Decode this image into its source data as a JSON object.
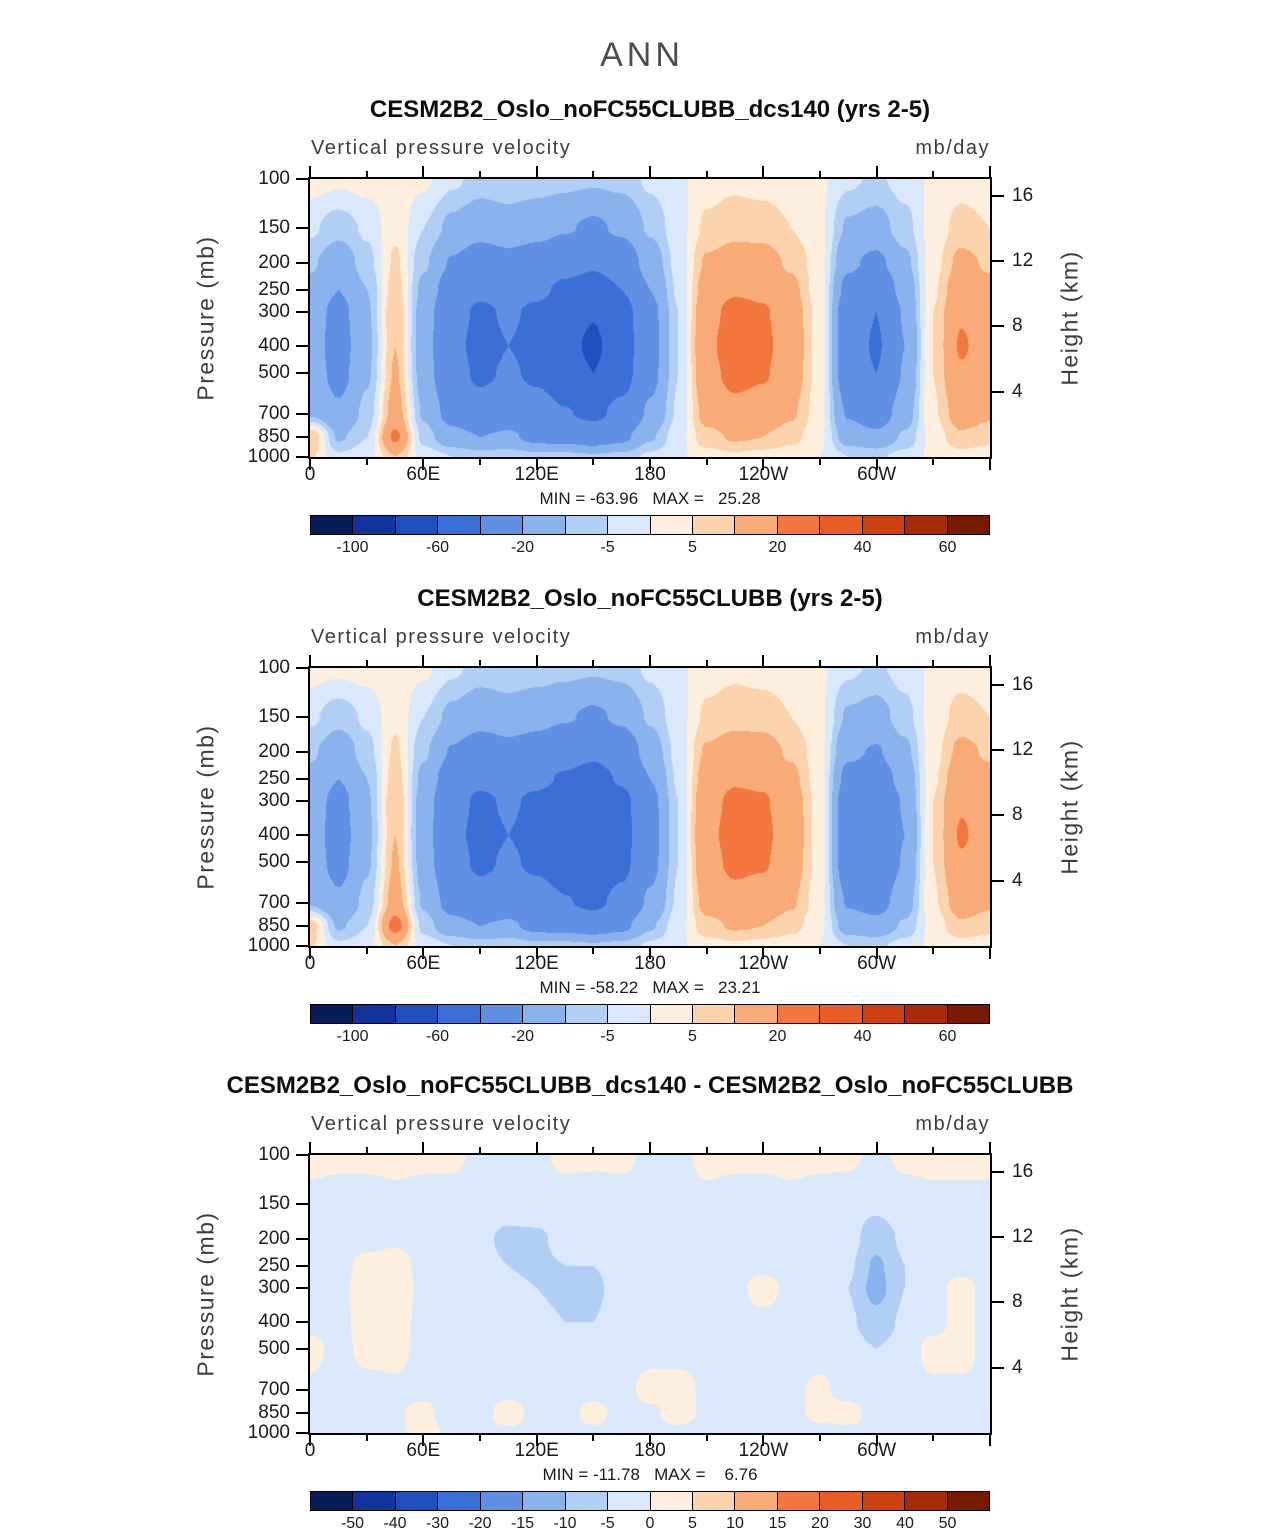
{
  "page": {
    "title": "ANN"
  },
  "panels": [
    {
      "title": "CESM2B2_Oslo_noFC55CLUBB_dcs140 (yrs 2-5)",
      "subtitle_left": "Vertical pressure velocity",
      "subtitle_right": "mb/day",
      "ylabel_left": "Pressure (mb)",
      "ylabel_right": "Height (km)",
      "minmax": "MIN = -63.96   MAX =   25.28"
    },
    {
      "title": "CESM2B2_Oslo_noFC55CLUBB (yrs 2-5)",
      "subtitle_left": "Vertical pressure velocity",
      "subtitle_right": "mb/day",
      "ylabel_left": "Pressure (mb)",
      "ylabel_right": "Height (km)",
      "minmax": "MIN = -58.22   MAX =   23.21"
    },
    {
      "title": "CESM2B2_Oslo_noFC55CLUBB_dcs140 - CESM2B2_Oslo_noFC55CLUBB",
      "subtitle_left": "Vertical pressure velocity",
      "subtitle_right": "mb/day",
      "ylabel_left": "Pressure (mb)",
      "ylabel_right": "Height (km)",
      "minmax": "MIN = -11.78   MAX =    6.76"
    }
  ],
  "chart_data": [
    {
      "type": "filled_contour",
      "title": "CESM2B2_Oslo_noFC55CLUBB_dcs140 (yrs 2-5)",
      "field": "Vertical pressure velocity",
      "units": "mb/day",
      "min": -63.96,
      "max": 25.28,
      "xlabel": "",
      "ylabel": "Pressure (mb)",
      "y2label": "Height (km)",
      "lon": [
        0,
        15,
        30,
        45,
        60,
        75,
        90,
        105,
        120,
        135,
        150,
        165,
        180,
        195,
        210,
        225,
        240,
        255,
        270,
        285,
        300,
        315,
        330,
        345,
        360
      ],
      "plev": [
        100,
        150,
        200,
        250,
        300,
        400,
        500,
        700,
        850,
        1000
      ],
      "values": [
        [
          2,
          1,
          2,
          3,
          1,
          -4,
          -7,
          -6,
          -7,
          -8,
          -9,
          -8,
          -4,
          -1,
          3,
          4,
          3,
          2,
          1,
          -4,
          -6,
          -3,
          1,
          3,
          2
        ],
        [
          -4,
          -8,
          -4,
          4,
          -5,
          -12,
          -16,
          -14,
          -16,
          -19,
          -22,
          -18,
          -9,
          -2,
          6,
          8,
          8,
          5,
          1,
          -11,
          -13,
          -7,
          2,
          7,
          5
        ],
        [
          -9,
          -15,
          -7,
          6,
          -9,
          -21,
          -27,
          -24,
          -27,
          -33,
          -37,
          -30,
          -15,
          -3,
          11,
          14,
          13,
          9,
          2,
          -18,
          -23,
          -12,
          3,
          12,
          9
        ],
        [
          -12,
          -20,
          -10,
          8,
          -12,
          -28,
          -36,
          -32,
          -36,
          -44,
          -50,
          -40,
          -20,
          -4,
          14,
          19,
          18,
          12,
          2,
          -24,
          -32,
          -16,
          4,
          16,
          12
        ],
        [
          -14,
          -24,
          -11,
          10,
          -14,
          -33,
          -43,
          -38,
          -43,
          -52,
          -59,
          -48,
          -24,
          -5,
          17,
          23,
          21,
          14,
          3,
          -29,
          -40,
          -19,
          5,
          19,
          14
        ],
        [
          -15,
          -25,
          -12,
          10,
          -15,
          -35,
          -45,
          -40,
          -45,
          -55,
          -63,
          -50,
          -25,
          -5,
          18,
          25,
          22,
          15,
          3,
          -30,
          -42,
          -20,
          5,
          21,
          15
        ],
        [
          -14,
          -24,
          -11,
          11,
          -14,
          -33,
          -43,
          -38,
          -43,
          -52,
          -60,
          -48,
          -24,
          -5,
          17,
          23,
          21,
          14,
          3,
          -29,
          -40,
          -19,
          5,
          19,
          14
        ],
        [
          -11,
          -18,
          -8,
          14,
          -11,
          -25,
          -32,
          -28,
          -32,
          -39,
          -44,
          -35,
          -18,
          -4,
          13,
          17,
          15,
          11,
          2,
          -21,
          -28,
          -14,
          4,
          14,
          11
        ],
        [
          10,
          -11,
          -5,
          22,
          -7,
          -16,
          -20,
          -18,
          -24,
          -25,
          -28,
          -23,
          -11,
          -2,
          8,
          11,
          10,
          7,
          1,
          -14,
          -17,
          -9,
          2,
          9,
          7
        ],
        [
          6,
          -4,
          -2,
          10,
          -2,
          -5,
          -7,
          -6,
          -8,
          -8,
          -9,
          -8,
          -4,
          -1,
          3,
          4,
          3,
          2,
          0,
          -5,
          -6,
          -3,
          1,
          3,
          2
        ]
      ],
      "levels": [
        -100,
        -80,
        -60,
        -40,
        -20,
        -10,
        -5,
        0,
        5,
        10,
        20,
        30,
        40,
        50,
        60
      ],
      "colors": [
        "#081d58",
        "#12339b",
        "#1e4fbd",
        "#3a6fd8",
        "#5f90e4",
        "#8ab3ee",
        "#b1cef5",
        "#d9e8fa",
        "#fdeedd",
        "#fbd4ae",
        "#f9ab77",
        "#f4763f",
        "#e75c22",
        "#cf4010",
        "#a82a06",
        "#781903"
      ],
      "x_ticks": [
        {
          "value": 0,
          "label": "0"
        },
        {
          "value": 60,
          "label": "60E"
        },
        {
          "value": 120,
          "label": "120E"
        },
        {
          "value": 180,
          "label": "180"
        },
        {
          "value": 240,
          "label": "120W"
        },
        {
          "value": 300,
          "label": "60W"
        }
      ],
      "pressure_ticks": [
        100,
        150,
        200,
        250,
        300,
        400,
        500,
        700,
        850,
        1000
      ],
      "height_ticks": [
        16,
        12,
        8,
        4
      ],
      "colorbar_labels": [
        "-100",
        "-60",
        "-20",
        "-5",
        "5",
        "20",
        "40",
        "60"
      ],
      "colorbar_label_positions": [
        1,
        3,
        5,
        7,
        9,
        11,
        13,
        15
      ]
    },
    {
      "type": "filled_contour",
      "title": "CESM2B2_Oslo_noFC55CLUBB (yrs 2-5)",
      "field": "Vertical pressure velocity",
      "units": "mb/day",
      "min": -58.22,
      "max": 23.21,
      "xlabel": "",
      "ylabel": "Pressure (mb)",
      "y2label": "Height (km)",
      "lon": [
        0,
        15,
        30,
        45,
        60,
        75,
        90,
        105,
        120,
        135,
        150,
        165,
        180,
        195,
        210,
        225,
        240,
        255,
        270,
        285,
        300,
        315,
        330,
        345,
        360
      ],
      "plev": [
        100,
        150,
        200,
        250,
        300,
        400,
        500,
        700,
        850,
        1000
      ],
      "values": [
        [
          2,
          1,
          2,
          3,
          1,
          -4,
          -7,
          -6,
          -7,
          -8,
          -9,
          -8,
          -4,
          -1,
          3,
          4,
          3,
          2,
          1,
          -4,
          -6,
          -3,
          1,
          3,
          2
        ],
        [
          -4,
          -8,
          -4,
          4,
          -5,
          -12,
          -16,
          -14,
          -16,
          -19,
          -22,
          -18,
          -9,
          -2,
          6,
          8,
          8,
          5,
          1,
          -11,
          -13,
          -7,
          2,
          7,
          5
        ],
        [
          -9,
          -15,
          -7,
          6,
          -9,
          -21,
          -27,
          -24,
          -27,
          -33,
          -37,
          -30,
          -15,
          -3,
          11,
          14,
          13,
          9,
          2,
          -18,
          -21,
          -12,
          3,
          12,
          9
        ],
        [
          -12,
          -20,
          -10,
          8,
          -12,
          -28,
          -36,
          -32,
          -36,
          -42,
          -47,
          -38,
          -20,
          -4,
          14,
          19,
          18,
          12,
          2,
          -24,
          -27,
          -16,
          4,
          16,
          12
        ],
        [
          -14,
          -24,
          -11,
          10,
          -14,
          -33,
          -43,
          -38,
          -43,
          -49,
          -55,
          -45,
          -24,
          -5,
          17,
          22,
          21,
          14,
          3,
          -29,
          -33,
          -19,
          5,
          19,
          14
        ],
        [
          -15,
          -25,
          -12,
          10,
          -15,
          -35,
          -45,
          -40,
          -45,
          -52,
          -58,
          -47,
          -25,
          -5,
          18,
          23,
          22,
          15,
          3,
          -30,
          -35,
          -20,
          5,
          21,
          15
        ],
        [
          -14,
          -24,
          -11,
          11,
          -14,
          -33,
          -43,
          -38,
          -43,
          -49,
          -55,
          -45,
          -24,
          -5,
          17,
          22,
          21,
          14,
          3,
          -29,
          -33,
          -19,
          5,
          19,
          14
        ],
        [
          -11,
          -18,
          -8,
          14,
          -11,
          -25,
          -32,
          -28,
          -32,
          -39,
          -44,
          -35,
          -18,
          -4,
          13,
          17,
          15,
          11,
          2,
          -21,
          -25,
          -14,
          4,
          14,
          11
        ],
        [
          8,
          -11,
          -5,
          24,
          -7,
          -16,
          -20,
          -18,
          -24,
          -25,
          -28,
          -23,
          -11,
          -2,
          8,
          11,
          10,
          7,
          1,
          -14,
          -16,
          -9,
          2,
          9,
          7
        ],
        [
          6,
          -4,
          -2,
          10,
          -2,
          -5,
          -7,
          -6,
          -8,
          -8,
          -9,
          -8,
          -4,
          -1,
          3,
          4,
          3,
          2,
          0,
          -5,
          -6,
          -3,
          1,
          3,
          2
        ]
      ],
      "levels": [
        -100,
        -80,
        -60,
        -40,
        -20,
        -10,
        -5,
        0,
        5,
        10,
        20,
        30,
        40,
        50,
        60
      ],
      "colors": [
        "#081d58",
        "#12339b",
        "#1e4fbd",
        "#3a6fd8",
        "#5f90e4",
        "#8ab3ee",
        "#b1cef5",
        "#d9e8fa",
        "#fdeedd",
        "#fbd4ae",
        "#f9ab77",
        "#f4763f",
        "#e75c22",
        "#cf4010",
        "#a82a06",
        "#781903"
      ],
      "x_ticks": [
        {
          "value": 0,
          "label": "0"
        },
        {
          "value": 60,
          "label": "60E"
        },
        {
          "value": 120,
          "label": "120E"
        },
        {
          "value": 180,
          "label": "180"
        },
        {
          "value": 240,
          "label": "120W"
        },
        {
          "value": 300,
          "label": "60W"
        }
      ],
      "pressure_ticks": [
        100,
        150,
        200,
        250,
        300,
        400,
        500,
        700,
        850,
        1000
      ],
      "height_ticks": [
        16,
        12,
        8,
        4
      ],
      "colorbar_labels": [
        "-100",
        "-60",
        "-20",
        "-5",
        "5",
        "20",
        "40",
        "60"
      ],
      "colorbar_label_positions": [
        1,
        3,
        5,
        7,
        9,
        11,
        13,
        15
      ]
    },
    {
      "type": "filled_contour",
      "title": "CESM2B2_Oslo_noFC55CLUBB_dcs140 - CESM2B2_Oslo_noFC55CLUBB",
      "field": "Vertical pressure velocity",
      "units": "mb/day",
      "min": -11.78,
      "max": 6.76,
      "xlabel": "",
      "ylabel": "Pressure (mb)",
      "y2label": "Height (km)",
      "lon": [
        0,
        15,
        30,
        45,
        60,
        75,
        90,
        105,
        120,
        135,
        150,
        165,
        180,
        195,
        210,
        225,
        240,
        255,
        270,
        285,
        300,
        315,
        330,
        345,
        360
      ],
      "plev": [
        100,
        150,
        200,
        250,
        300,
        400,
        500,
        700,
        850,
        1000
      ],
      "values": [
        [
          1,
          1,
          1,
          1,
          1,
          1,
          -1,
          -1,
          -1,
          1,
          1,
          1,
          -1,
          -1,
          1,
          1,
          1,
          1,
          1,
          1,
          -1,
          1,
          1,
          1,
          1
        ],
        [
          -1,
          -2,
          -2,
          -1,
          -2,
          -2,
          -3,
          -3,
          -2,
          -2,
          -3,
          -2,
          -2,
          -1,
          -1,
          -2,
          -2,
          -1,
          -2,
          -3,
          -4,
          -2,
          -1,
          -1,
          -1
        ],
        [
          -2,
          -2,
          -2,
          -1,
          -2,
          -3,
          -4,
          -6,
          -6,
          -3,
          -3,
          -2,
          -2,
          -2,
          -2,
          -2,
          -2,
          -2,
          -2,
          -3,
          -8,
          -4,
          -2,
          -2,
          -2
        ],
        [
          -2,
          -2,
          2,
          3,
          -2,
          -3,
          -4,
          -5,
          -6,
          -5,
          -5,
          -3,
          -2,
          -2,
          -2,
          -2,
          -2,
          -2,
          -2,
          -4,
          -11,
          -5,
          -2,
          -2,
          -2
        ],
        [
          -2,
          -2,
          4,
          5,
          -2,
          -2,
          -3,
          -4,
          -5,
          -6,
          -6,
          -3,
          -2,
          -2,
          -2,
          -2,
          3,
          -2,
          -2,
          -5,
          -12,
          -5,
          -2,
          2,
          -2
        ],
        [
          -2,
          -2,
          3,
          3,
          -2,
          -2,
          -3,
          -3,
          -4,
          -5,
          -5,
          -3,
          -2,
          -2,
          -2,
          -2,
          -2,
          -2,
          -2,
          -4,
          -8,
          -4,
          -2,
          2,
          -2
        ],
        [
          2,
          -2,
          2,
          2,
          -2,
          -2,
          -2,
          -3,
          -3,
          -4,
          -4,
          -3,
          -2,
          -2,
          -1,
          -2,
          -2,
          -2,
          -2,
          -3,
          -5,
          -3,
          2,
          2,
          -2
        ],
        [
          -1,
          -4,
          -2,
          -1,
          -2,
          -2,
          -2,
          -2,
          -2,
          -2,
          -2,
          -2,
          2,
          2,
          -1,
          -1,
          -1,
          -1,
          1,
          -2,
          -3,
          -2,
          -1,
          -1,
          -1
        ],
        [
          -1,
          -5,
          -2,
          -1,
          2,
          -4,
          -2,
          3,
          -2,
          -2,
          2,
          -2,
          -1,
          2,
          -1,
          -1,
          -1,
          -1,
          1,
          2,
          -2,
          -1,
          -1,
          -1,
          -1
        ],
        [
          -1,
          -2,
          -1,
          -1,
          2,
          -1,
          -1,
          -1,
          -1,
          -1,
          -1,
          -1,
          -1,
          -1,
          -1,
          -1,
          -1,
          -1,
          -1,
          -1,
          -1,
          -1,
          -1,
          -1,
          -1
        ]
      ],
      "levels": [
        -50,
        -40,
        -30,
        -20,
        -15,
        -10,
        -5,
        0,
        5,
        10,
        15,
        20,
        30,
        40,
        50
      ],
      "colors": [
        "#081d58",
        "#12339b",
        "#1e4fbd",
        "#3a6fd8",
        "#5f90e4",
        "#8ab3ee",
        "#b1cef5",
        "#d9e8fa",
        "#fdeedd",
        "#fbd4ae",
        "#f9ab77",
        "#f4763f",
        "#e75c22",
        "#cf4010",
        "#a82a06",
        "#781903"
      ],
      "x_ticks": [
        {
          "value": 0,
          "label": "0"
        },
        {
          "value": 60,
          "label": "60E"
        },
        {
          "value": 120,
          "label": "120E"
        },
        {
          "value": 180,
          "label": "180"
        },
        {
          "value": 240,
          "label": "120W"
        },
        {
          "value": 300,
          "label": "60W"
        }
      ],
      "pressure_ticks": [
        100,
        150,
        200,
        250,
        300,
        400,
        500,
        700,
        850,
        1000
      ],
      "height_ticks": [
        16,
        12,
        8,
        4
      ],
      "colorbar_labels": [
        "-50",
        "-40",
        "-30",
        "-20",
        "-15",
        "-10",
        "-5",
        "0",
        "5",
        "10",
        "15",
        "20",
        "30",
        "40",
        "50"
      ],
      "colorbar_label_positions": [
        1,
        2,
        3,
        4,
        5,
        6,
        7,
        8,
        9,
        10,
        11,
        12,
        13,
        14,
        15
      ]
    }
  ]
}
